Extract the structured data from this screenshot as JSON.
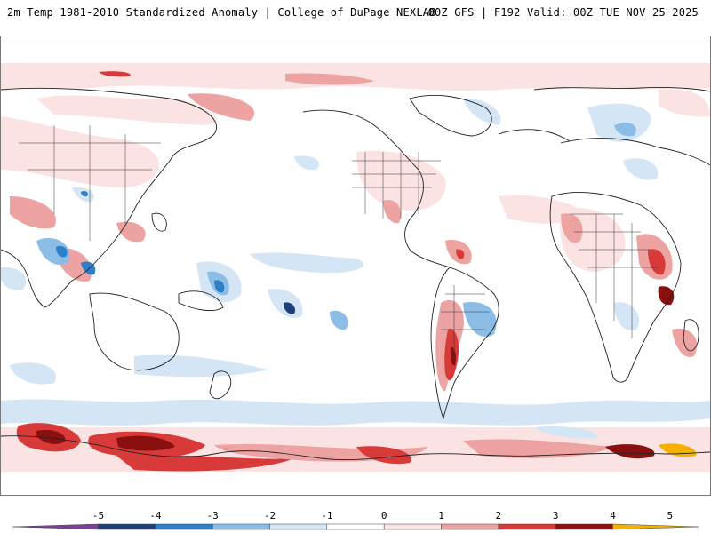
{
  "header": {
    "product_title": "2m Temp 1981-2010 Standardized Anomaly | College of DuPage NEXLAB",
    "run_info": "00Z GFS | F192 Valid: 00Z TUE NOV 25 2025"
  },
  "colorbar": {
    "ticks": [
      "-5",
      "-4",
      "-3",
      "-2",
      "-1",
      "0",
      "1",
      "2",
      "3",
      "4",
      "5"
    ],
    "segments": [
      {
        "color": "#7b3fa0"
      },
      {
        "color": "#1f3f7a"
      },
      {
        "color": "#2e7fc9"
      },
      {
        "color": "#8cbde6"
      },
      {
        "color": "#d4e6f6"
      },
      {
        "color": "#ffffff"
      },
      {
        "color": "#fbe3e3"
      },
      {
        "color": "#eea3a3"
      },
      {
        "color": "#d83a3a"
      },
      {
        "color": "#8a0f0f"
      },
      {
        "color": "#f5b000"
      }
    ]
  },
  "colors": {
    "warm_light": "#fbe3e3",
    "warm_mid": "#eea3a3",
    "warm_strong": "#d83a3a",
    "warm_extreme": "#8a0f0f",
    "cool_light": "#d4e6f6",
    "cool_mid": "#8cbde6",
    "cool_strong": "#2e7fc9",
    "cool_extreme": "#1f3f7a",
    "coastline": "#222222",
    "frame_border": "#777777"
  }
}
